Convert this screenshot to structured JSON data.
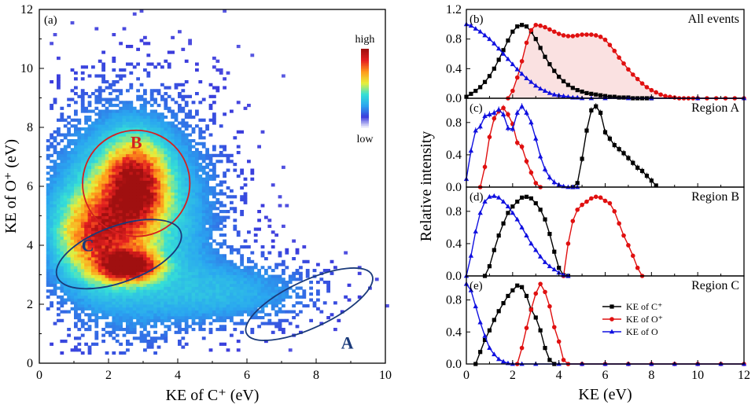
{
  "chart_data": [
    {
      "panel_label": "(a)",
      "type": "heatmap",
      "xlabel": "KE of C⁺ (eV)",
      "ylabel": "KE of O⁺ (eV)",
      "xlim": [
        0,
        10
      ],
      "ylim": [
        0,
        12
      ],
      "xticks": [
        "0",
        "2",
        "4",
        "6",
        "8",
        "10"
      ],
      "yticks": [
        "0",
        "2",
        "4",
        "6",
        "8",
        "10",
        "12"
      ],
      "colorbar": {
        "high_label": "high",
        "low_label": "low",
        "colors": [
          "#ffffff",
          "#3b3bdc",
          "#2aa6f0",
          "#35e0d6",
          "#e8ef3a",
          "#ff9a1a",
          "#e62020",
          "#a01010"
        ]
      },
      "density_lobes": [
        {
          "center": [
            2.6,
            3.3
          ],
          "peak": 1.0
        },
        {
          "center": [
            2.7,
            6.0
          ],
          "peak": 0.85
        },
        {
          "center": [
            1.5,
            4.3
          ],
          "peak": 0.55
        }
      ],
      "regions": [
        {
          "label": "A",
          "center": [
            7.8,
            2.0
          ],
          "rx": 2.0,
          "ry": 0.8,
          "angle_deg": -25,
          "color": "#1a3a7a"
        },
        {
          "label": "B",
          "center": [
            2.8,
            6.1
          ],
          "rx": 1.55,
          "ry": 1.8,
          "angle_deg": 0,
          "color": "#d42020"
        },
        {
          "label": "C",
          "center": [
            2.3,
            3.7
          ],
          "rx": 1.9,
          "ry": 0.95,
          "angle_deg": -20,
          "color": "#1a3a7a"
        }
      ]
    },
    {
      "panel_label": "(b)",
      "title": "All events",
      "type": "line",
      "xlim": [
        0,
        12
      ],
      "ylim": [
        0,
        1.2
      ],
      "yticks": [
        "0.0",
        "0.4",
        "0.8",
        "1.2"
      ],
      "series": [
        {
          "name": "KE of C⁺",
          "color": "#000000",
          "marker": "square",
          "x": [
            0,
            0.2,
            0.4,
            0.6,
            0.8,
            1.0,
            1.2,
            1.4,
            1.6,
            1.8,
            2.0,
            2.2,
            2.4,
            2.6,
            2.8,
            3.0,
            3.2,
            3.4,
            3.6,
            3.8,
            4.0,
            4.2,
            4.4,
            4.6,
            4.8,
            5.0,
            5.2,
            5.4,
            5.6,
            5.8,
            6.0,
            6.2,
            6.4,
            6.6,
            6.8,
            7.0,
            7.2,
            7.4,
            7.6,
            7.8,
            8.0
          ],
          "y": [
            0.02,
            0.06,
            0.1,
            0.15,
            0.22,
            0.3,
            0.4,
            0.52,
            0.65,
            0.78,
            0.9,
            0.97,
            0.99,
            0.97,
            0.9,
            0.8,
            0.68,
            0.56,
            0.46,
            0.37,
            0.29,
            0.23,
            0.18,
            0.14,
            0.11,
            0.09,
            0.07,
            0.06,
            0.05,
            0.04,
            0.03,
            0.02,
            0.02,
            0.01,
            0.01,
            0.01,
            0.0,
            0.0,
            0.0,
            0.0,
            0.0
          ]
        },
        {
          "name": "KE of O⁺",
          "color": "#e01010",
          "marker": "circle",
          "x": [
            1.8,
            2.0,
            2.2,
            2.4,
            2.6,
            2.8,
            3.0,
            3.2,
            3.4,
            3.6,
            3.8,
            4.0,
            4.2,
            4.4,
            4.6,
            4.8,
            5.0,
            5.2,
            5.4,
            5.6,
            5.8,
            6.0,
            6.2,
            6.4,
            6.6,
            6.8,
            7.0,
            7.2,
            7.4,
            7.6,
            7.8,
            8.0,
            8.2,
            8.4,
            8.6,
            8.8,
            9.0,
            9.2,
            9.4,
            9.6,
            9.8,
            10.0,
            10.4,
            10.8,
            11.2,
            11.6,
            12.0
          ],
          "y": [
            0.0,
            0.1,
            0.28,
            0.5,
            0.75,
            0.92,
            0.99,
            0.98,
            0.96,
            0.93,
            0.9,
            0.87,
            0.85,
            0.84,
            0.84,
            0.85,
            0.86,
            0.86,
            0.86,
            0.85,
            0.83,
            0.79,
            0.72,
            0.64,
            0.55,
            0.47,
            0.39,
            0.32,
            0.26,
            0.2,
            0.15,
            0.11,
            0.08,
            0.05,
            0.03,
            0.02,
            0.01,
            0.0,
            0.0,
            0.0,
            0.0,
            0.0,
            0.0,
            0.0,
            0.0,
            0.0,
            0.0
          ]
        },
        {
          "name": "KE of O",
          "color": "#1010e0",
          "marker": "triangle",
          "x": [
            0,
            0.2,
            0.4,
            0.6,
            0.8,
            1.0,
            1.2,
            1.4,
            1.6,
            1.8,
            2.0,
            2.2,
            2.4,
            2.6,
            2.8,
            3.0,
            3.2,
            3.4,
            3.6,
            3.8,
            4.0,
            4.2,
            4.4,
            4.6,
            4.8,
            5.0,
            5.4,
            6.0,
            7.0,
            8.0,
            10.0,
            12.0
          ],
          "y": [
            1.0,
            0.98,
            0.94,
            0.9,
            0.85,
            0.8,
            0.74,
            0.67,
            0.6,
            0.53,
            0.46,
            0.39,
            0.33,
            0.27,
            0.22,
            0.17,
            0.13,
            0.1,
            0.07,
            0.05,
            0.04,
            0.03,
            0.02,
            0.01,
            0.01,
            0.0,
            0.0,
            0.0,
            0.0,
            0.0,
            0.0,
            0.0
          ]
        }
      ]
    },
    {
      "panel_label": "(c)",
      "title": "Region A",
      "type": "line",
      "xlim": [
        0,
        12
      ],
      "ylim": [
        0,
        1.1
      ],
      "yticks": [
        "0.0",
        "0.4",
        "0.8"
      ],
      "series": [
        {
          "name": "KE of C⁺",
          "color": "#000000",
          "marker": "square",
          "x": [
            4.6,
            4.8,
            5.0,
            5.2,
            5.4,
            5.6,
            5.8,
            6.0,
            6.2,
            6.4,
            6.6,
            6.8,
            7.0,
            7.2,
            7.4,
            7.6,
            7.8,
            8.0,
            8.2
          ],
          "y": [
            0.0,
            0.05,
            0.35,
            0.7,
            0.95,
            1.0,
            0.92,
            0.68,
            0.6,
            0.52,
            0.47,
            0.42,
            0.36,
            0.3,
            0.24,
            0.2,
            0.14,
            0.08,
            0.02
          ]
        },
        {
          "name": "KE of O⁺",
          "color": "#e01010",
          "marker": "circle",
          "x": [
            0.6,
            0.8,
            1.0,
            1.2,
            1.4,
            1.6,
            1.8,
            2.0,
            2.2,
            2.4,
            2.6,
            2.8,
            3.0,
            3.2
          ],
          "y": [
            0.0,
            0.25,
            0.62,
            0.85,
            0.94,
            0.98,
            0.9,
            0.78,
            0.55,
            0.5,
            0.32,
            0.18,
            0.05,
            0.0
          ]
        },
        {
          "name": "KE of O",
          "color": "#1010e0",
          "marker": "triangle",
          "x": [
            0,
            0.2,
            0.4,
            0.6,
            0.8,
            1.0,
            1.2,
            1.4,
            1.6,
            1.8,
            2.0,
            2.2,
            2.4,
            2.6,
            2.8,
            3.0,
            3.2,
            3.4,
            3.6,
            3.8,
            4.0,
            4.2,
            4.4,
            4.6,
            4.8
          ],
          "y": [
            0.1,
            0.45,
            0.7,
            0.75,
            0.88,
            0.9,
            0.92,
            0.96,
            0.9,
            0.73,
            0.72,
            0.92,
            1.0,
            0.92,
            0.8,
            0.6,
            0.38,
            0.22,
            0.12,
            0.06,
            0.03,
            0.01,
            0.0,
            0.0,
            0.0
          ]
        }
      ]
    },
    {
      "panel_label": "(d)",
      "title": "Region B",
      "type": "line",
      "xlim": [
        0,
        12
      ],
      "ylim": [
        0,
        1.1
      ],
      "yticks": [
        "0.0",
        "0.4",
        "0.8"
      ],
      "series": [
        {
          "name": "KE of C⁺",
          "color": "#000000",
          "marker": "square",
          "x": [
            0.8,
            1.0,
            1.2,
            1.4,
            1.6,
            1.8,
            2.0,
            2.2,
            2.4,
            2.6,
            2.8,
            3.0,
            3.2,
            3.4,
            3.6,
            3.8,
            4.0,
            4.2,
            4.4
          ],
          "y": [
            0.0,
            0.12,
            0.32,
            0.5,
            0.65,
            0.78,
            0.86,
            0.92,
            0.97,
            0.98,
            0.96,
            0.9,
            0.82,
            0.7,
            0.52,
            0.3,
            0.1,
            0.01,
            0.0
          ]
        },
        {
          "name": "KE of O⁺",
          "color": "#e01010",
          "marker": "circle",
          "x": [
            4.2,
            4.4,
            4.6,
            4.8,
            5.0,
            5.2,
            5.4,
            5.6,
            5.8,
            6.0,
            6.2,
            6.4,
            6.6,
            6.8,
            7.0,
            7.2,
            7.4,
            7.6
          ],
          "y": [
            0.0,
            0.4,
            0.68,
            0.82,
            0.88,
            0.92,
            0.96,
            0.98,
            0.97,
            0.93,
            0.9,
            0.8,
            0.65,
            0.5,
            0.38,
            0.25,
            0.1,
            0.0
          ]
        },
        {
          "name": "KE of O",
          "color": "#1010e0",
          "marker": "triangle",
          "x": [
            0,
            0.2,
            0.4,
            0.6,
            0.8,
            1.0,
            1.2,
            1.4,
            1.6,
            1.8,
            2.0,
            2.2,
            2.4,
            2.6,
            2.8,
            3.0,
            3.2,
            3.4,
            3.6,
            3.8,
            4.0,
            4.2,
            4.4
          ],
          "y": [
            0.0,
            0.25,
            0.55,
            0.78,
            0.92,
            0.98,
            0.99,
            0.97,
            0.92,
            0.86,
            0.78,
            0.7,
            0.6,
            0.5,
            0.4,
            0.32,
            0.24,
            0.17,
            0.12,
            0.08,
            0.04,
            0.01,
            0.0
          ]
        }
      ]
    },
    {
      "panel_label": "(e)",
      "title": "Region C",
      "type": "line",
      "xlim": [
        0,
        12
      ],
      "ylim": [
        0,
        1.1
      ],
      "yticks": [
        "0.0",
        "0.4",
        "0.8"
      ],
      "xticks": [
        "0",
        "2",
        "4",
        "6",
        "8",
        "10",
        "12"
      ],
      "xlabel": "KE (eV)",
      "series": [
        {
          "name": "KE of C⁺",
          "color": "#000000",
          "marker": "square",
          "x": [
            0.4,
            0.6,
            0.8,
            1.0,
            1.2,
            1.4,
            1.6,
            1.8,
            2.0,
            2.2,
            2.4,
            2.6,
            2.8,
            3.0,
            3.2,
            3.4,
            3.6,
            3.8
          ],
          "y": [
            0.0,
            0.15,
            0.3,
            0.42,
            0.55,
            0.66,
            0.76,
            0.85,
            0.92,
            0.98,
            0.96,
            0.85,
            0.68,
            0.58,
            0.42,
            0.2,
            0.05,
            0.0
          ]
        },
        {
          "name": "KE of O⁺",
          "color": "#e01010",
          "marker": "circle",
          "x": [
            2.2,
            2.4,
            2.6,
            2.8,
            3.0,
            3.2,
            3.4,
            3.6,
            3.8,
            4.0,
            4.2,
            4.4,
            5.0,
            6.0,
            7.0,
            8.0,
            9.0,
            10.0,
            11.0,
            12.0
          ],
          "y": [
            0.0,
            0.2,
            0.45,
            0.68,
            0.88,
            1.0,
            0.9,
            0.72,
            0.46,
            0.28,
            0.05,
            0.0,
            0.0,
            0.0,
            0.0,
            0.0,
            0.0,
            0.0,
            0.0,
            0.0
          ]
        },
        {
          "name": "KE of O",
          "color": "#1010e0",
          "marker": "triangle",
          "x": [
            0,
            0.2,
            0.4,
            0.6,
            0.8,
            1.0,
            1.2,
            1.4,
            1.6,
            1.8,
            2.0,
            2.4,
            3.0,
            4.0,
            5.0,
            6.0,
            7.0,
            8.0,
            9.0,
            10.0,
            11.0,
            12.0
          ],
          "y": [
            1.0,
            0.92,
            0.72,
            0.52,
            0.35,
            0.2,
            0.12,
            0.06,
            0.03,
            0.01,
            0.0,
            0.0,
            0.0,
            0.0,
            0.0,
            0.0,
            0.0,
            0.0,
            0.0,
            0.0,
            0.0,
            0.0
          ]
        }
      ]
    }
  ],
  "shared": {
    "right_ylabel": "Relative intensity",
    "legend": [
      "KE of C⁺",
      "KE of O⁺",
      "KE of O"
    ]
  }
}
